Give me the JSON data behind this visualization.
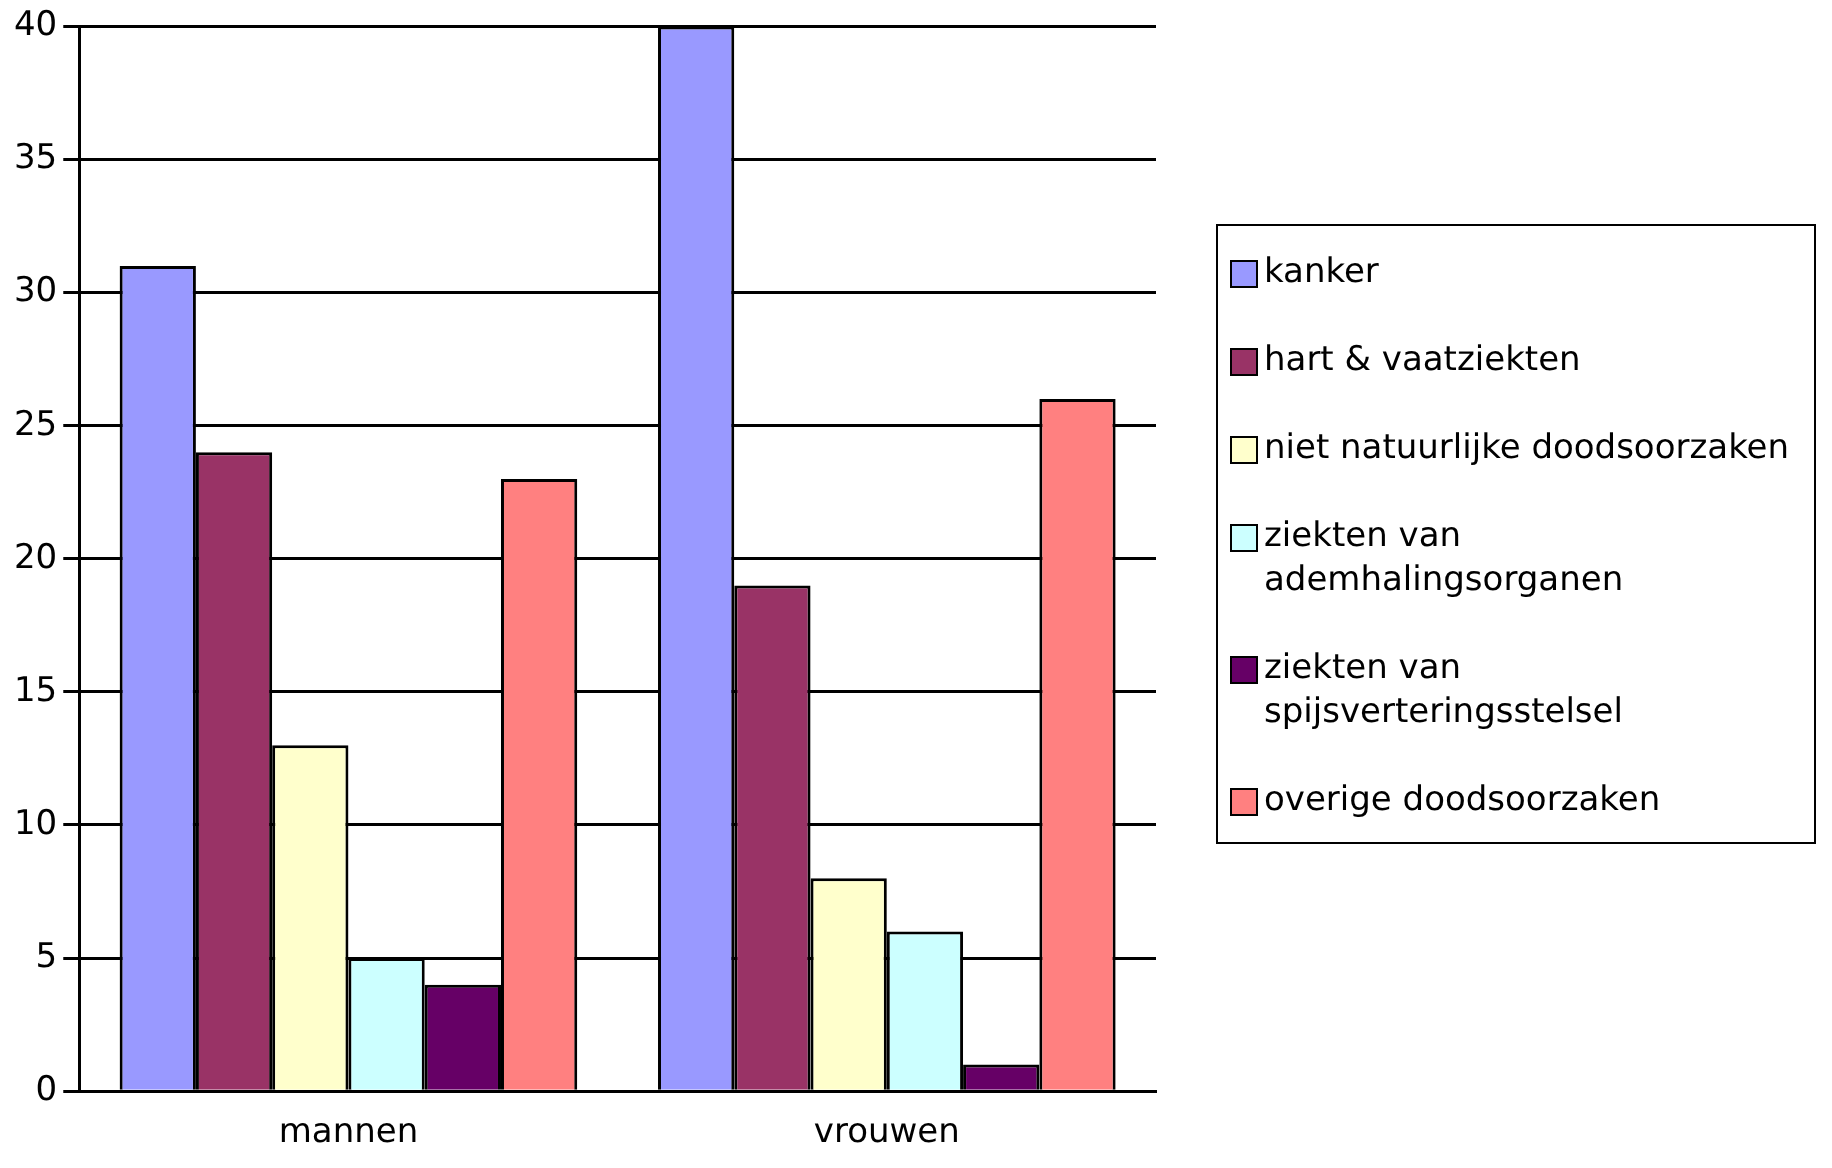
{
  "chart_data": {
    "type": "bar",
    "categories": [
      "mannen",
      "vrouwen"
    ],
    "series": [
      {
        "name": "kanker",
        "color": "#9999ff",
        "values": [
          31,
          40
        ]
      },
      {
        "name": "hart & vaatziekten",
        "color": "#993366",
        "values": [
          24,
          19
        ]
      },
      {
        "name": "niet natuurlijke doodsoorzaken",
        "color": "#ffffcc",
        "values": [
          13,
          8
        ]
      },
      {
        "name": "ziekten van ademhalingsorganen",
        "color": "#ccffff",
        "values": [
          5,
          6
        ]
      },
      {
        "name": "ziekten van spijsverteringsstelsel",
        "color": "#660066",
        "values": [
          4,
          1
        ]
      },
      {
        "name": "overige doodsoorzaken",
        "color": "#ff8080",
        "values": [
          23,
          26
        ]
      }
    ],
    "ylim": [
      0,
      40
    ],
    "yticks": [
      0,
      5,
      10,
      15,
      20,
      25,
      30,
      35,
      40
    ],
    "grid": "y",
    "legend": "right"
  }
}
